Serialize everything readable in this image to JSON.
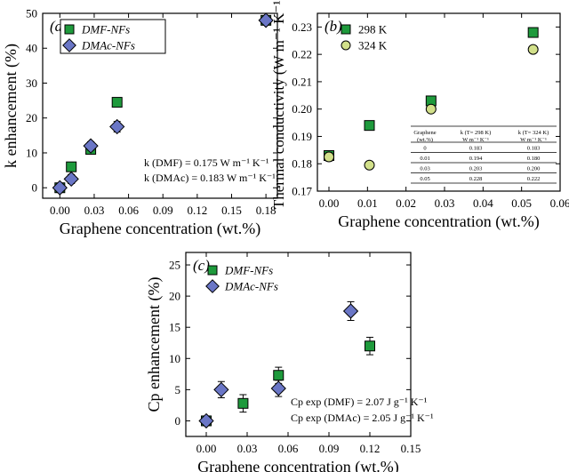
{
  "colors": {
    "square_fill": "#1e9a3c",
    "diamond_fill": "#6a76c6",
    "circle_fill": "#d2e08a",
    "marker_stroke": "#000000"
  },
  "chart_data": [
    {
      "panel": "(a)",
      "type": "scatter",
      "xlabel": "Graphene concentration (wt.%)",
      "ylabel": "k enhancement (%)",
      "xlim": [
        -0.015,
        0.19
      ],
      "ylim": [
        -3,
        50
      ],
      "xticks": [
        "0.00",
        "0.03",
        "0.06",
        "0.09",
        "0.12",
        "0.15",
        "0.18"
      ],
      "yticks": [
        "0",
        "10",
        "20",
        "30",
        "40",
        "50"
      ],
      "legend_position": "top-left",
      "series": [
        {
          "name": "DMF-NFs",
          "marker": "square",
          "points": [
            [
              0.0,
              0.0,
              1.2
            ],
            [
              0.01,
              6.0,
              1.2
            ],
            [
              0.027,
              11.0,
              1.0
            ],
            [
              0.05,
              24.5,
              1.3
            ],
            [
              0.18,
              48.0,
              1.3
            ]
          ]
        },
        {
          "name": "DMAc-NFs",
          "marker": "diamond",
          "points": [
            [
              0.0,
              0.0,
              1.3
            ],
            [
              0.01,
              2.5,
              1.3
            ],
            [
              0.027,
              12.0,
              1.2
            ],
            [
              0.05,
              17.5,
              1.5
            ],
            [
              0.18,
              48.0,
              1.0
            ]
          ]
        }
      ],
      "annotations": [
        "k (DMF) = 0.175 W m⁻¹ K⁻¹",
        "k (DMAc) = 0.183 W m⁻¹ K⁻¹"
      ]
    },
    {
      "panel": "(b)",
      "type": "scatter",
      "xlabel": "Graphene concentration (wt.%)",
      "ylabel": "Thermal conductivity (W m⁻¹ K⁻¹)",
      "xlim": [
        -0.003,
        0.06
      ],
      "ylim": [
        0.17,
        0.235
      ],
      "xticks": [
        "0.00",
        "0.01",
        "0.02",
        "0.03",
        "0.04",
        "0.05",
        "0.06"
      ],
      "yticks": [
        "0.17",
        "0.18",
        "0.19",
        "0.20",
        "0.21",
        "0.22",
        "0.23"
      ],
      "legend_position": "top-left",
      "series": [
        {
          "name": "298 K",
          "marker": "square",
          "points": [
            [
              0.0,
              0.183,
              0.0015
            ],
            [
              0.0105,
              0.194,
              0.001
            ],
            [
              0.0265,
              0.203,
              0.001
            ],
            [
              0.053,
              0.228,
              0.001
            ]
          ]
        },
        {
          "name": "324 K",
          "marker": "circle",
          "points": [
            [
              0.0,
              0.1825,
              0.0015
            ],
            [
              0.0105,
              0.1795,
              0.001
            ],
            [
              0.0265,
              0.2,
              0.0012
            ],
            [
              0.053,
              0.2218,
              0.001
            ]
          ]
        }
      ],
      "table": {
        "headers": [
          "Graphene\n(wt.%)",
          "k (T= 298 K)\nW m⁻¹ K⁻¹",
          "k (T= 324 K)\nW m⁻¹ K⁻¹"
        ],
        "rows": [
          [
            "0",
            "0.183",
            "0.183"
          ],
          [
            "0.01",
            "0.194",
            "0.180"
          ],
          [
            "0.03",
            "0.203",
            "0.200"
          ],
          [
            "0.05",
            "0.228",
            "0.222"
          ]
        ]
      }
    },
    {
      "panel": "(c)",
      "type": "scatter",
      "xlabel": "Graphene concentration (wt.%)",
      "ylabel": "Cp enhancement (%)",
      "xlim": [
        -0.015,
        0.15
      ],
      "ylim": [
        -2.5,
        27
      ],
      "xticks": [
        "0.00",
        "0.03",
        "0.06",
        "0.09",
        "0.12",
        "0.15"
      ],
      "yticks": [
        "0",
        "5",
        "10",
        "15",
        "20",
        "25"
      ],
      "legend_position": "top-left",
      "series": [
        {
          "name": "DMF-NFs",
          "marker": "square",
          "points": [
            [
              0.0,
              0.0,
              0.7
            ],
            [
              0.027,
              2.8,
              1.4
            ],
            [
              0.053,
              7.3,
              1.3
            ],
            [
              0.12,
              12.0,
              1.4
            ]
          ]
        },
        {
          "name": "DMAc-NFs",
          "marker": "diamond",
          "points": [
            [
              0.0,
              0.0,
              0.7
            ],
            [
              0.011,
              5.0,
              1.3
            ],
            [
              0.053,
              5.2,
              1.3
            ],
            [
              0.106,
              17.6,
              1.5
            ]
          ]
        }
      ],
      "annotations": [
        "Cp exp (DMF) = 2.07 J g⁻¹ K⁻¹",
        "Cp exp (DMAc) = 2.05 J g⁻¹ K⁻¹"
      ]
    }
  ]
}
